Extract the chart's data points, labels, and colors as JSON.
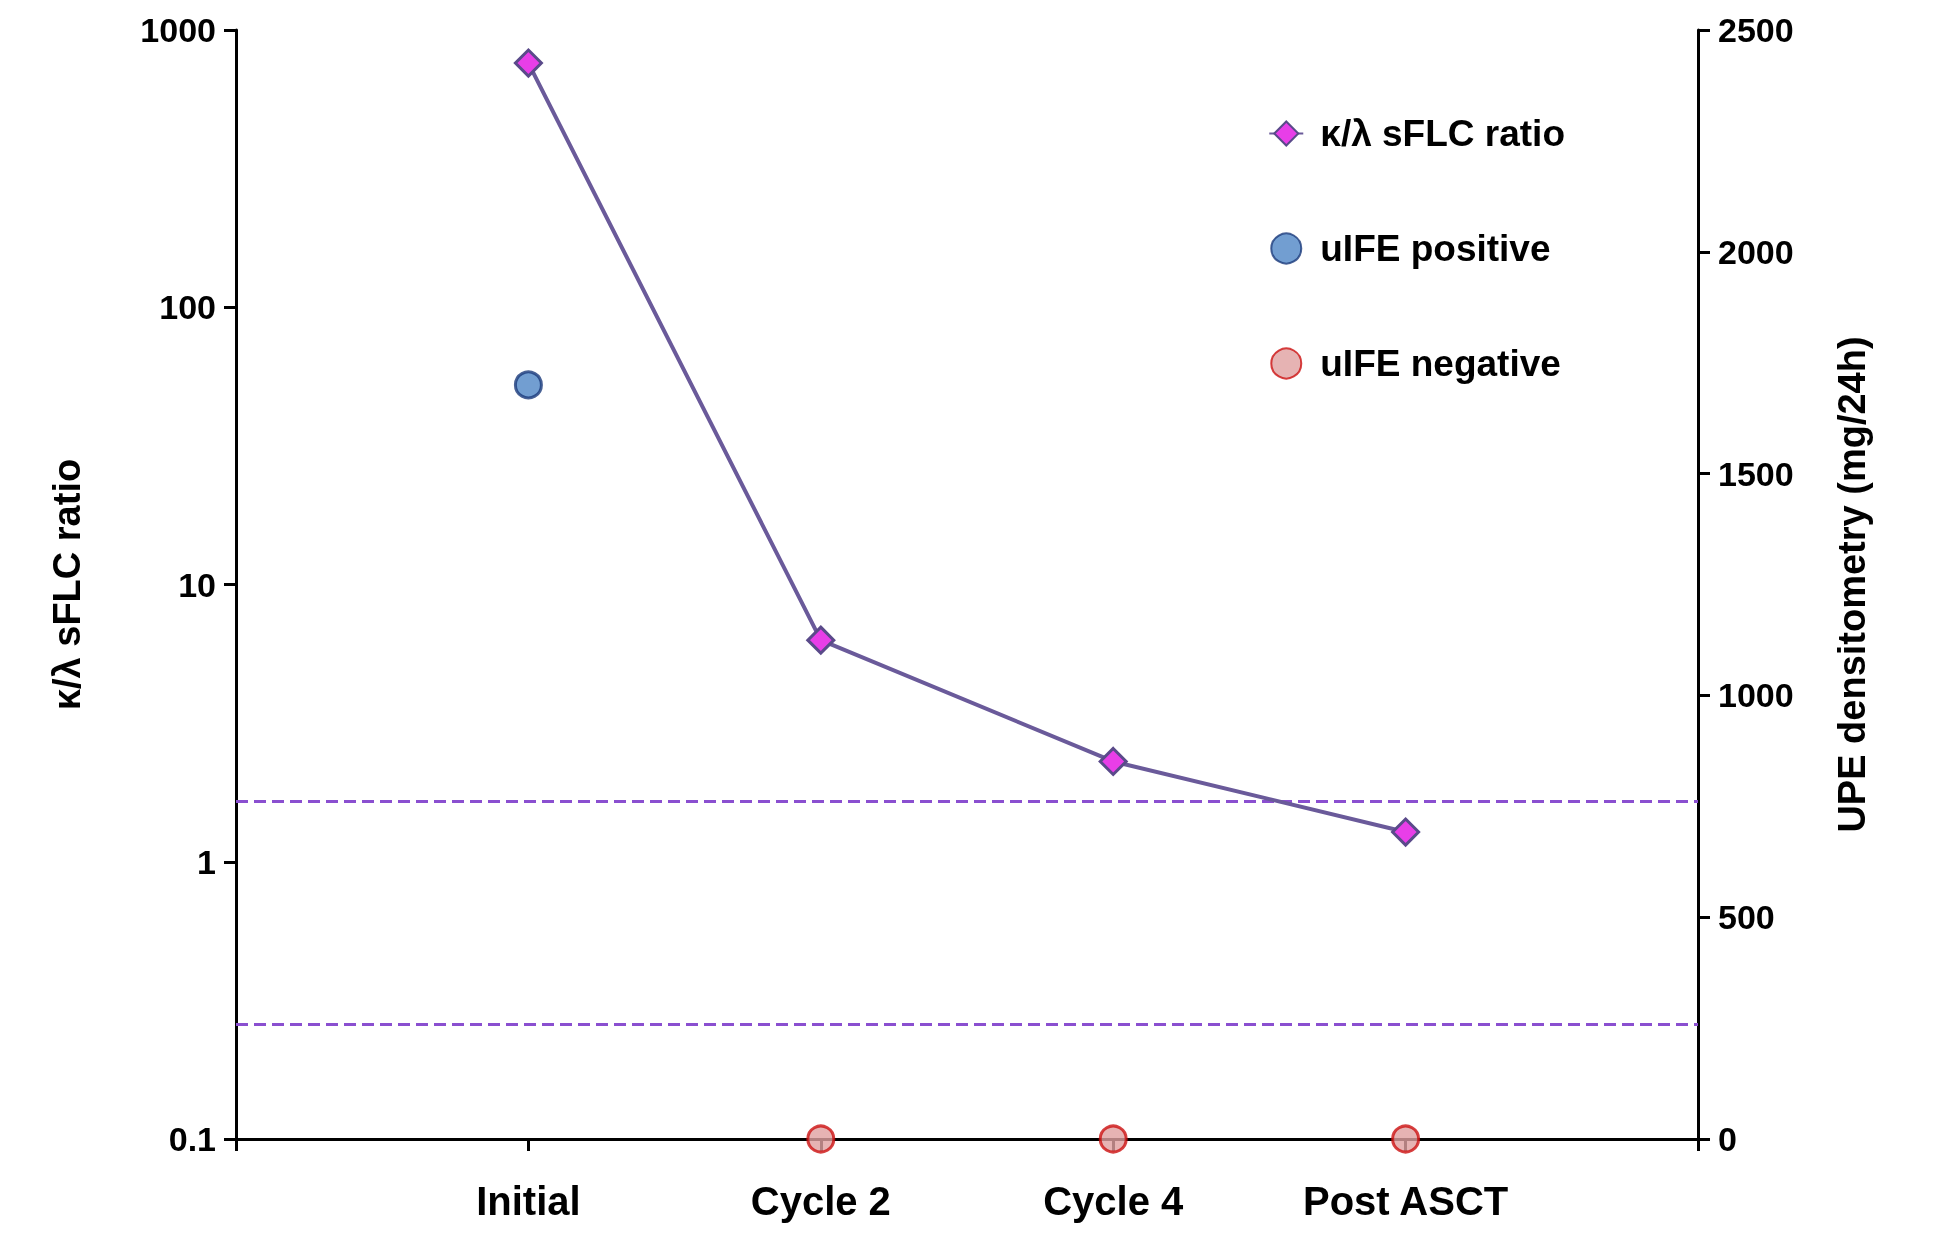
{
  "chart_data": {
    "type": "line",
    "ylabel": "κ/λ sFLC ratio",
    "y2label": "UPE densitometry (mg/24h)",
    "categories": [
      "Initial",
      "Cycle 2",
      "Cycle 4",
      "Post ASCT"
    ],
    "series": [
      {
        "name": "κ/λ sFLC ratio",
        "color": "#e83ee8",
        "marker": "diamond",
        "values": [
          760,
          6.3,
          2.3,
          1.28
        ]
      },
      {
        "name": "uIFE positive",
        "type": "scatter",
        "axis": "y2",
        "color": "#4f86c6",
        "marker": "circle",
        "values": [
          1700,
          null,
          null,
          null
        ]
      },
      {
        "name": "uIFE negative",
        "type": "scatter",
        "axis": "y2",
        "color": "#e0a0a0",
        "marker": "circle",
        "values": [
          null,
          0,
          0,
          0
        ]
      }
    ],
    "log": "y",
    "ylim": [
      0.1,
      1000
    ],
    "yticks": [
      0.1,
      1,
      10,
      100,
      1000
    ],
    "y2lim": [
      0,
      2500
    ],
    "y2ticks": [
      0,
      500,
      1000,
      1500,
      2000,
      2500
    ],
    "ref_lines": [
      {
        "axis": "y",
        "value": 1.65,
        "color": "#8a4fd0",
        "line_style": "dashed"
      },
      {
        "axis": "y",
        "value": 0.26,
        "color": "#8a4fd0",
        "line_style": "dashed"
      }
    ],
    "grid": false,
    "legend": "top right"
  }
}
